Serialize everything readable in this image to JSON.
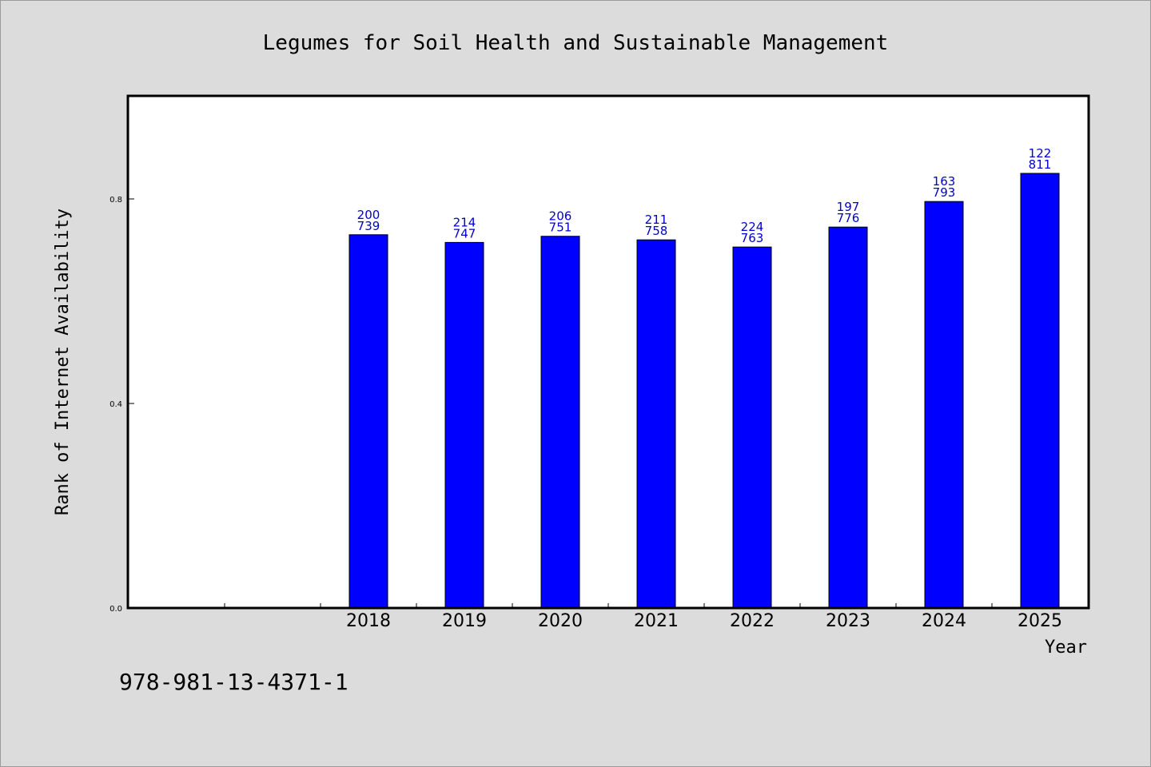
{
  "chart_data": {
    "type": "bar",
    "title": "Legumes for Soil Health and Sustainable Management",
    "xlabel": "Year",
    "ylabel": "Rank of Internet Availability",
    "categories": [
      "2018",
      "2019",
      "2020",
      "2021",
      "2022",
      "2023",
      "2024",
      "2025"
    ],
    "values": [
      0.73,
      0.715,
      0.727,
      0.72,
      0.706,
      0.745,
      0.795,
      0.85
    ],
    "data_labels_top": [
      "200",
      "214",
      "206",
      "211",
      "224",
      "197",
      "163",
      "122"
    ],
    "data_labels_bottom": [
      "739",
      "747",
      "751",
      "758",
      "763",
      "776",
      "793",
      "811"
    ],
    "ylim": [
      0,
      1.0
    ],
    "yticks": [
      0.0,
      0.4,
      0.8
    ],
    "ytick_labels": [
      "0.0",
      "0.4",
      "0.8"
    ],
    "x_slots": 10,
    "first_bar_slot": 2,
    "bar_color": "#0000ff",
    "label_color": "#0000cc",
    "grid": false,
    "legend": "none"
  },
  "footer": {
    "isbn": "978-981-13-4371-1"
  }
}
